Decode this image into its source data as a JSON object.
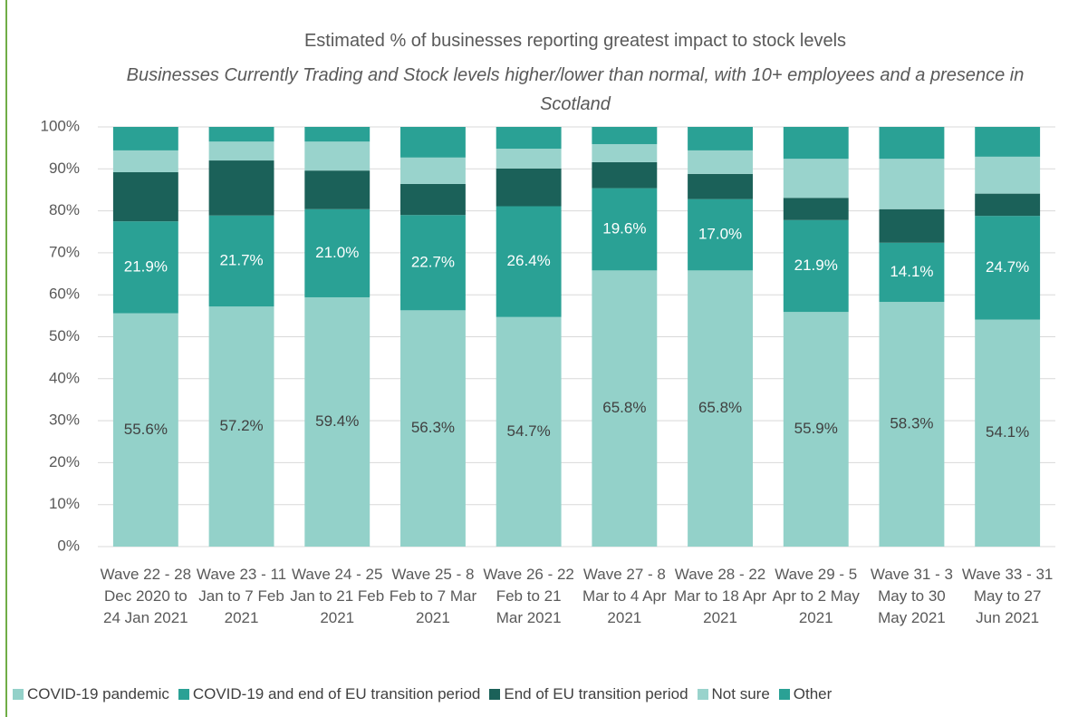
{
  "chart_data": {
    "type": "stacked_bar",
    "title": "Estimated % of businesses reporting greatest impact to stock levels",
    "subtitle": "Businesses Currently Trading and Stock levels higher/lower than normal, with 10+ employees and a presence in Scotland",
    "categories": [
      "Wave 22 - 28 Dec 2020 to 24 Jan 2021",
      "Wave 23 - 11 Jan to 7 Feb 2021",
      "Wave 24 - 25 Jan to 21 Feb 2021",
      "Wave 25 - 8 Feb to 7 Mar 2021",
      "Wave 26 - 22 Feb to 21 Mar 2021",
      "Wave 27 - 8 Mar to 4 Apr 2021",
      "Wave 28 - 22 Mar to 18 Apr 2021",
      "Wave 29 - 5 Apr to 2 May 2021",
      "Wave 31 - 3 May to 30 May 2021",
      "Wave 33 - 31 May to 27 Jun 2021"
    ],
    "series": [
      {
        "name": "COVID-19 pandemic",
        "color": "#93d1c9",
        "values": [
          55.6,
          57.2,
          59.4,
          56.3,
          54.7,
          65.8,
          65.8,
          55.9,
          58.3,
          54.1
        ],
        "value_labels": [
          "55.6%",
          "57.2%",
          "59.4%",
          "56.3%",
          "54.7%",
          "65.8%",
          "65.8%",
          "55.9%",
          "58.3%",
          "54.1%"
        ]
      },
      {
        "name": "COVID-19 and end of EU transition period",
        "color": "#2aa195",
        "values": [
          21.9,
          21.7,
          21.0,
          22.7,
          26.4,
          19.6,
          17.0,
          21.9,
          14.1,
          24.7
        ],
        "value_labels": [
          "21.9%",
          "21.7%",
          "21.0%",
          "22.7%",
          "26.4%",
          "19.6%",
          "17.0%",
          "21.9%",
          "14.1%",
          "24.7%"
        ]
      },
      {
        "name": "End of EU transition period",
        "color": "#1b6159",
        "values": [
          11.7,
          13.1,
          9.2,
          7.4,
          9.0,
          6.2,
          6.0,
          5.3,
          8.0,
          5.3
        ]
      },
      {
        "name": "Not sure",
        "color": "#99d3cc",
        "values": [
          5.2,
          4.5,
          6.9,
          6.3,
          4.7,
          4.3,
          5.6,
          9.3,
          12.0,
          8.8
        ]
      },
      {
        "name": "Other",
        "color": "#2aa195",
        "values": [
          5.6,
          3.5,
          3.5,
          7.3,
          5.2,
          4.1,
          5.6,
          7.6,
          7.6,
          7.1
        ]
      }
    ],
    "ylim": [
      0,
      100
    ],
    "yticks": [
      {
        "value": 0,
        "label": "0%"
      },
      {
        "value": 10,
        "label": "10%"
      },
      {
        "value": 20,
        "label": "20%"
      },
      {
        "value": 30,
        "label": "30%"
      },
      {
        "value": 40,
        "label": "40%"
      },
      {
        "value": 50,
        "label": "50%"
      },
      {
        "value": 60,
        "label": "60%"
      },
      {
        "value": 70,
        "label": "70%"
      },
      {
        "value": 80,
        "label": "80%"
      },
      {
        "value": 90,
        "label": "90%"
      },
      {
        "value": 100,
        "label": "100%"
      }
    ],
    "grid": true,
    "legend": "bottom"
  }
}
